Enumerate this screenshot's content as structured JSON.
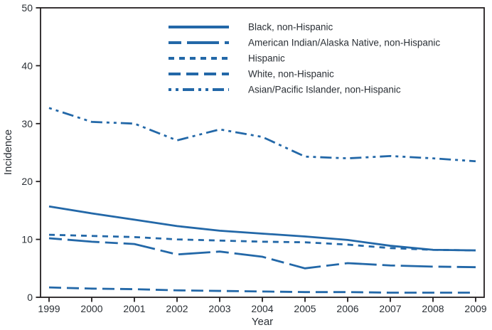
{
  "figure": {
    "background": "#ffffff",
    "line_color": "#2368a8",
    "axis_color": "#231f20",
    "text_color": "#2b3036"
  },
  "chart_data": {
    "type": "line",
    "title": "",
    "xlabel": "Year",
    "ylabel": "Incidence",
    "x": [
      1999,
      2000,
      2001,
      2002,
      2003,
      2004,
      2005,
      2006,
      2007,
      2008,
      2009
    ],
    "x_tick_labels": [
      "1999",
      "2000",
      "2001",
      "2002",
      "2003",
      "2004",
      "2005",
      "2006",
      "2007",
      "2008",
      "2009"
    ],
    "y_ticks": [
      0,
      10,
      20,
      30,
      40,
      50
    ],
    "ylim": [
      0,
      50
    ],
    "grid": false,
    "legend_position": "top-center-inside",
    "series": [
      {
        "name": "Black, non-Hispanic",
        "dash": "solid",
        "values": [
          15.7,
          14.5,
          13.4,
          12.3,
          11.5,
          11.0,
          10.5,
          9.9,
          8.9,
          8.2,
          8.1
        ]
      },
      {
        "name": "American Indian/Alaska Native, non-Hispanic",
        "dash": "long-dash-dash",
        "values": [
          10.2,
          9.6,
          9.2,
          7.4,
          7.9,
          7.0,
          5.0,
          5.9,
          5.5,
          5.3,
          5.2
        ]
      },
      {
        "name": "Hispanic",
        "dash": "short-dash",
        "values": [
          10.8,
          10.6,
          10.4,
          10.0,
          9.8,
          9.6,
          9.5,
          9.1,
          8.5,
          8.2,
          8.1
        ]
      },
      {
        "name": "White, non-Hispanic",
        "dash": "medium-dash",
        "values": [
          1.7,
          1.5,
          1.4,
          1.2,
          1.1,
          1.0,
          0.9,
          0.9,
          0.8,
          0.8,
          0.8
        ]
      },
      {
        "name": "Asian/Pacific Islander, non-Hispanic",
        "dash": "dash-dot-dot",
        "values": [
          32.7,
          30.3,
          30.0,
          27.1,
          29.0,
          27.7,
          24.3,
          24.0,
          24.4,
          24.0,
          23.5
        ]
      }
    ]
  }
}
